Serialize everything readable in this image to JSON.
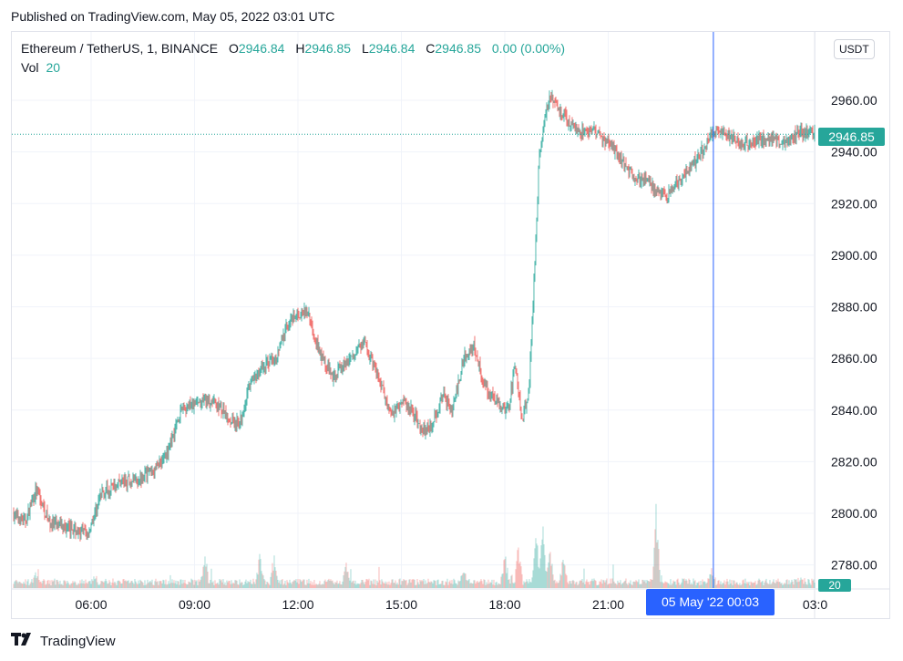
{
  "published": "Published on TradingView.com, May 05, 2022 03:01 UTC",
  "legend": {
    "symbol": "Ethereum / TetherUS, 1, BINANCE",
    "o_key": "O",
    "o_val": "2946.84",
    "h_key": "H",
    "h_val": "2946.85",
    "l_key": "L",
    "l_val": "2946.84",
    "c_key": "C",
    "c_val": "2946.85",
    "change": "0.00 (0.00%)",
    "vol_key": "Vol",
    "vol_val": "20"
  },
  "currency_button": "USDT",
  "last_price_label": "2946.85",
  "volume_tag": "20",
  "crosshair_time_label": "05 May '22   00:03",
  "brand": "TradingView",
  "colors": {
    "up": "#26a69a",
    "down": "#ef5350",
    "crosshair": "#2962ff",
    "grid": "#f0f3fa"
  },
  "chart_data": {
    "type": "candlestick",
    "symbol": "Ethereum / TetherUS",
    "interval": "1",
    "exchange": "BINANCE",
    "y_ticks": [
      2780,
      2800,
      2820,
      2840,
      2860,
      2880,
      2900,
      2920,
      2940,
      2960
    ],
    "y_tick_labels": [
      "2780.00",
      "2800.00",
      "2820.00",
      "2840.00",
      "2860.00",
      "2880.00",
      "2900.00",
      "2920.00",
      "2940.00",
      "2960.00"
    ],
    "ylim": [
      2772,
      2980
    ],
    "x_tick_labels": [
      "06:00",
      "09:00",
      "12:00",
      "15:00",
      "18:00",
      "21:00",
      "03:0"
    ],
    "x_tick_hours": [
      6,
      9,
      12,
      15,
      18,
      21,
      27
    ],
    "xlim_hours": [
      3.7,
      27.2
    ],
    "crosshair_hours": 24.05,
    "last_close": 2946.85,
    "price_path": [
      [
        3.7,
        2800
      ],
      [
        4.1,
        2797
      ],
      [
        4.4,
        2809
      ],
      [
        4.8,
        2796
      ],
      [
        5.4,
        2794
      ],
      [
        5.9,
        2792
      ],
      [
        6.3,
        2808
      ],
      [
        6.8,
        2812
      ],
      [
        7.3,
        2813
      ],
      [
        7.8,
        2817
      ],
      [
        8.2,
        2823
      ],
      [
        8.6,
        2840
      ],
      [
        9.0,
        2842
      ],
      [
        9.5,
        2844
      ],
      [
        9.9,
        2838
      ],
      [
        10.3,
        2834
      ],
      [
        10.6,
        2850
      ],
      [
        11.0,
        2857
      ],
      [
        11.4,
        2862
      ],
      [
        11.7,
        2873
      ],
      [
        12.0,
        2877
      ],
      [
        12.3,
        2878
      ],
      [
        12.6,
        2863
      ],
      [
        13.0,
        2853
      ],
      [
        13.5,
        2860
      ],
      [
        13.9,
        2866
      ],
      [
        14.3,
        2854
      ],
      [
        14.7,
        2838
      ],
      [
        15.0,
        2844
      ],
      [
        15.3,
        2840
      ],
      [
        15.6,
        2832
      ],
      [
        15.9,
        2834
      ],
      [
        16.2,
        2846
      ],
      [
        16.5,
        2840
      ],
      [
        16.8,
        2860
      ],
      [
        17.1,
        2865
      ],
      [
        17.4,
        2850
      ],
      [
        17.8,
        2842
      ],
      [
        18.1,
        2840
      ],
      [
        18.3,
        2858
      ],
      [
        18.5,
        2835
      ],
      [
        18.7,
        2848
      ],
      [
        18.9,
        2905
      ],
      [
        19.0,
        2940
      ],
      [
        19.15,
        2952
      ],
      [
        19.3,
        2963
      ],
      [
        19.6,
        2956
      ],
      [
        19.9,
        2951
      ],
      [
        20.2,
        2948
      ],
      [
        20.6,
        2948
      ],
      [
        21.0,
        2944
      ],
      [
        21.4,
        2936
      ],
      [
        21.8,
        2930
      ],
      [
        22.1,
        2929
      ],
      [
        22.4,
        2925
      ],
      [
        22.7,
        2922
      ],
      [
        23.0,
        2928
      ],
      [
        23.4,
        2934
      ],
      [
        23.8,
        2942
      ],
      [
        24.1,
        2949
      ],
      [
        24.5,
        2946
      ],
      [
        24.9,
        2943
      ],
      [
        25.3,
        2944
      ],
      [
        25.7,
        2946
      ],
      [
        26.1,
        2943
      ],
      [
        26.5,
        2948
      ],
      [
        27.0,
        2946.85
      ]
    ],
    "volume_spikes": [
      [
        4.4,
        0.06
      ],
      [
        6.1,
        0.05
      ],
      [
        9.3,
        0.22
      ],
      [
        10.9,
        0.24
      ],
      [
        11.3,
        0.19
      ],
      [
        13.4,
        0.16
      ],
      [
        16.8,
        0.11
      ],
      [
        18.0,
        0.26
      ],
      [
        18.4,
        0.34
      ],
      [
        18.9,
        0.43
      ],
      [
        19.1,
        0.46
      ],
      [
        19.3,
        0.39
      ],
      [
        19.7,
        0.22
      ],
      [
        22.4,
        0.62
      ],
      [
        24.0,
        0.12
      ],
      [
        26.6,
        0.04
      ]
    ]
  }
}
